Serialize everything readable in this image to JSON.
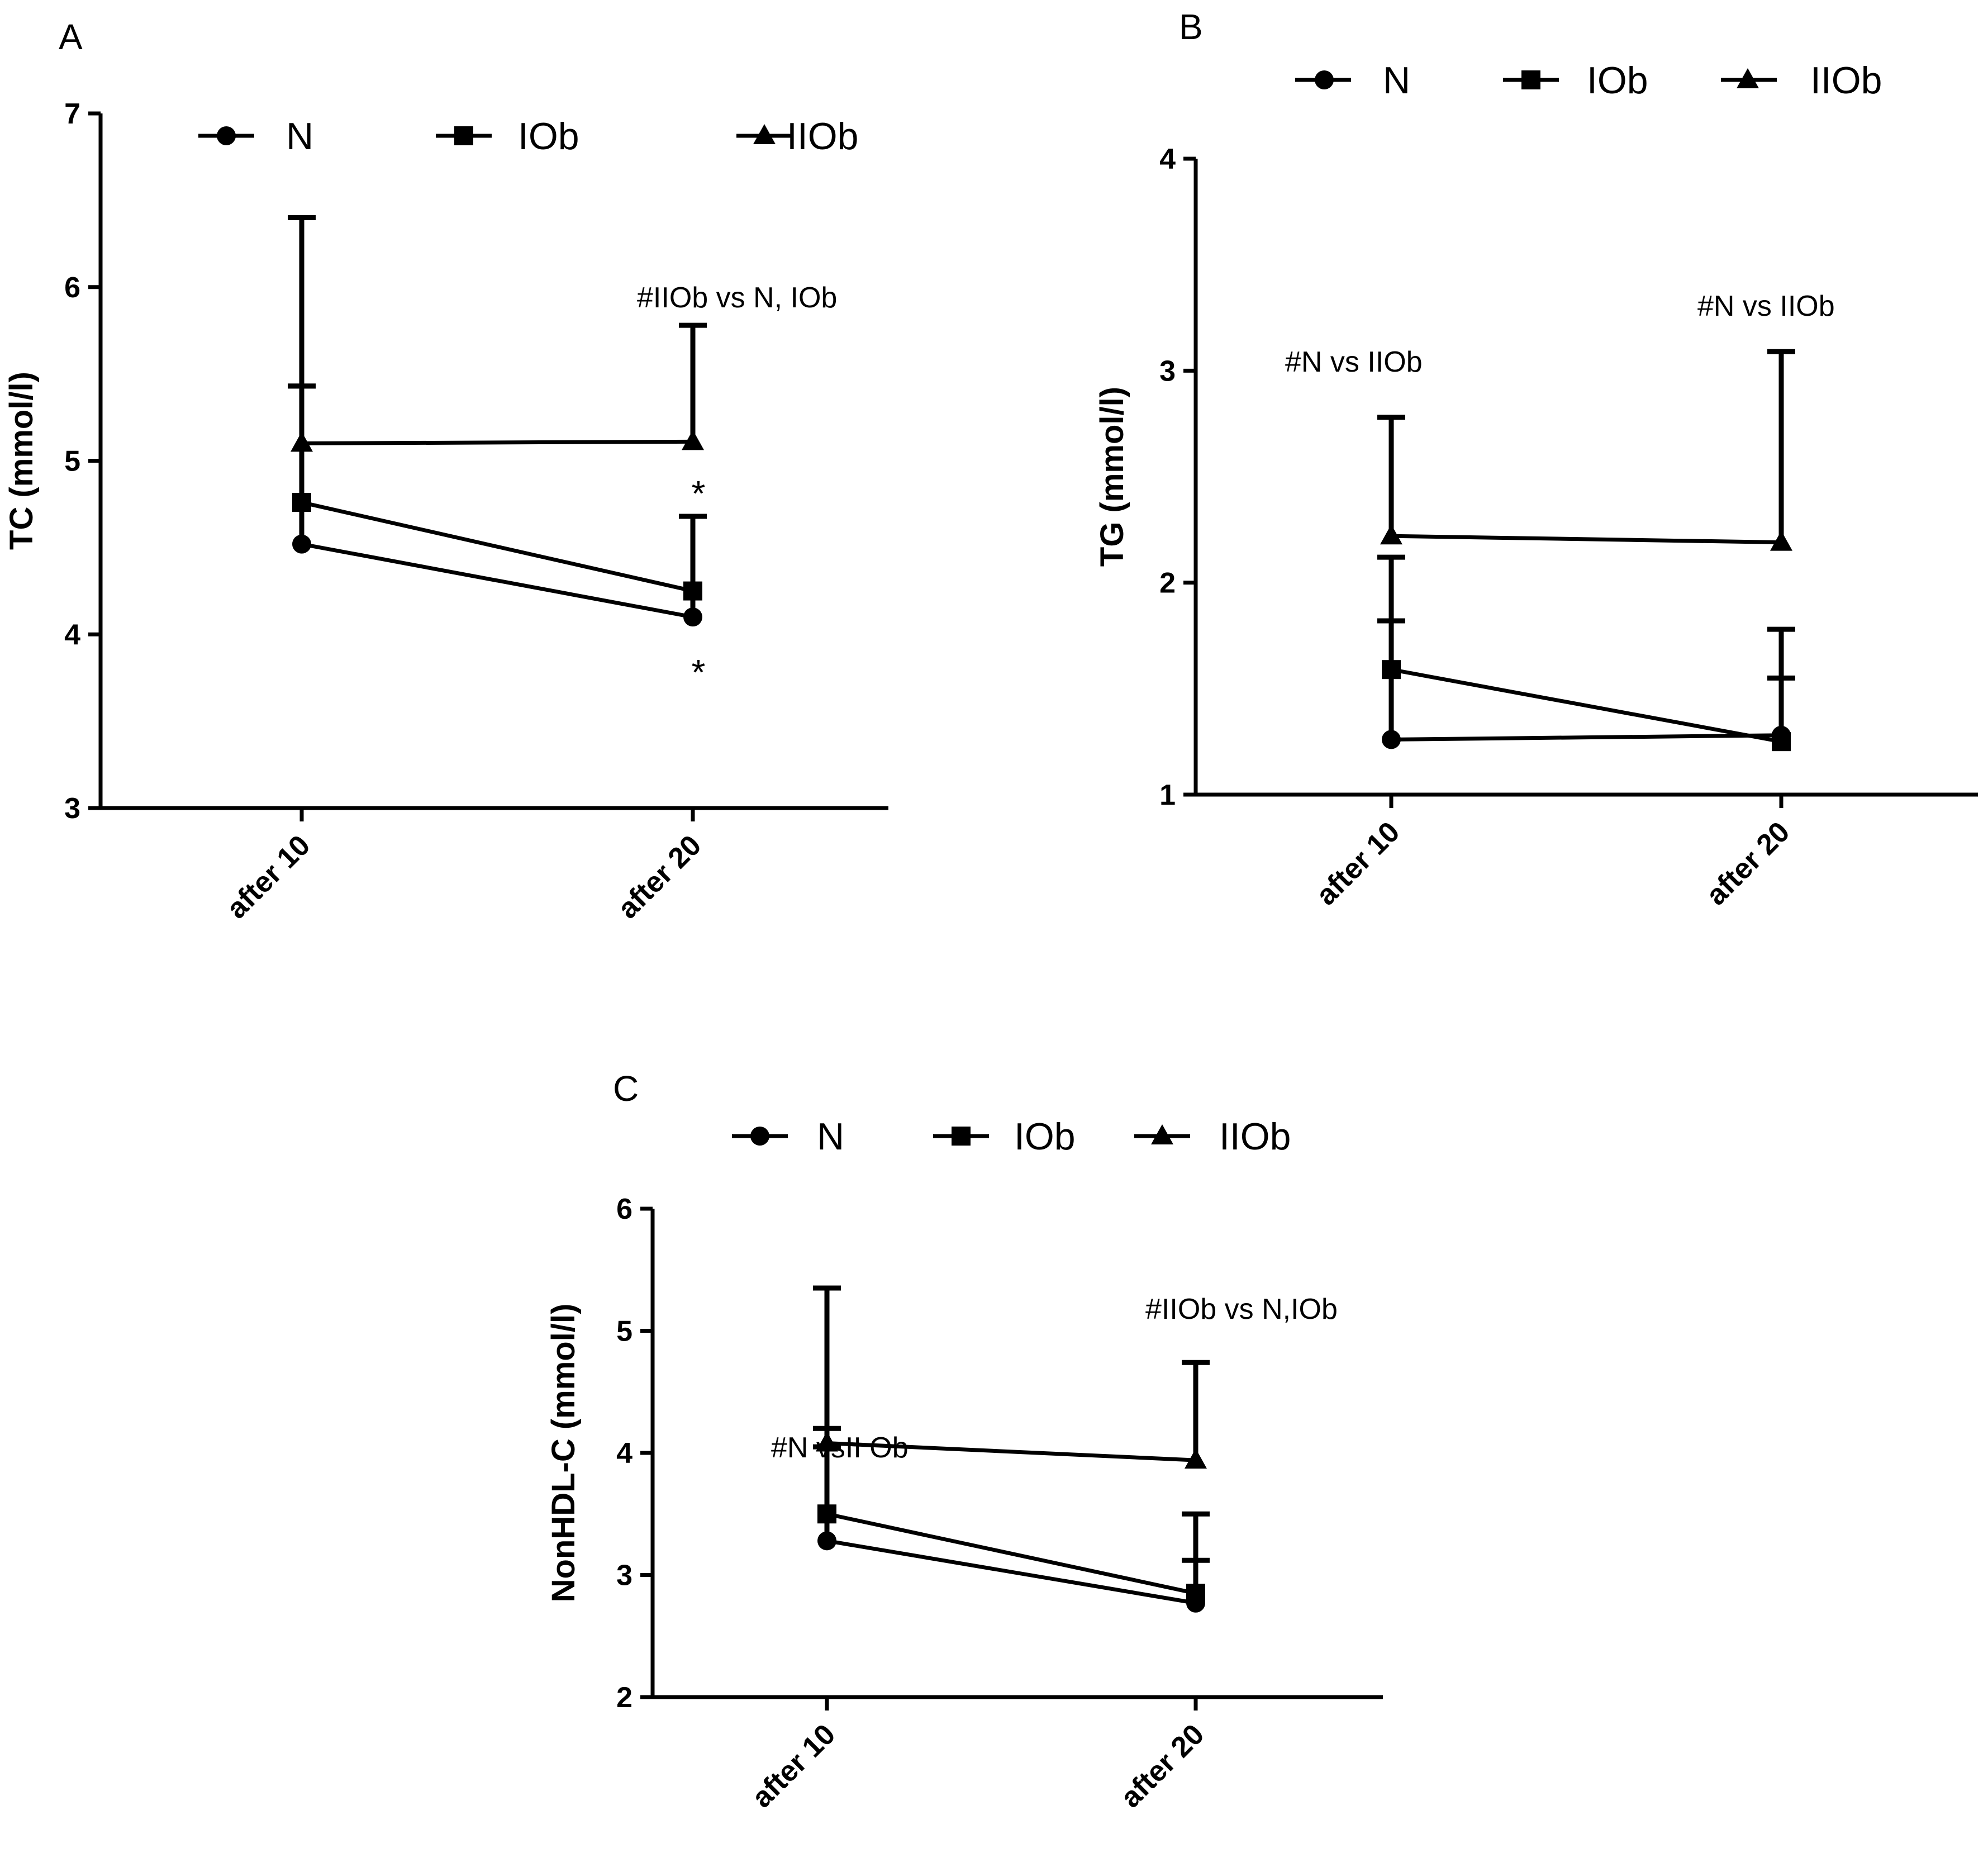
{
  "chart_data": [
    {
      "panel": "A",
      "type": "line",
      "categories": [
        "after 10",
        "after 20"
      ],
      "ylabel": "TC (mmol/l)",
      "ylim": [
        3,
        7
      ],
      "yticks": [
        "3",
        "4",
        "5",
        "6",
        "7"
      ],
      "legend": [
        "N",
        "IOb",
        "IIOb"
      ],
      "legend_position": "top",
      "series": [
        {
          "name": "N",
          "marker": "circle",
          "values": [
            4.52,
            4.1
          ],
          "upper": [
            5.43,
            4.68
          ]
        },
        {
          "name": "IOb",
          "marker": "square",
          "values": [
            4.76,
            4.25
          ],
          "upper": [
            5.43,
            4.68
          ]
        },
        {
          "name": "IIOb",
          "marker": "triangle",
          "values": [
            5.1,
            5.11
          ],
          "upper": [
            6.4,
            5.78
          ]
        }
      ],
      "annotations": [
        {
          "text": "#IIOb vs N, IOb",
          "category": 1
        },
        {
          "text": "*",
          "category": 1,
          "place": "above IOb"
        },
        {
          "text": "*",
          "category": 1,
          "place": "below N"
        }
      ]
    },
    {
      "panel": "B",
      "type": "line",
      "categories": [
        "after 10",
        "after 20"
      ],
      "ylabel": "TG (mmol/l)",
      "ylim": [
        1,
        4
      ],
      "yticks": [
        "1",
        "2",
        "3",
        "4"
      ],
      "legend": [
        "N",
        "IOb",
        "IIOb"
      ],
      "legend_position": "top",
      "series": [
        {
          "name": "N",
          "marker": "circle",
          "values": [
            1.26,
            1.28
          ],
          "upper": [
            1.82,
            1.55
          ]
        },
        {
          "name": "IOb",
          "marker": "square",
          "values": [
            1.59,
            1.25
          ],
          "upper": [
            2.12,
            1.78
          ]
        },
        {
          "name": "IIOb",
          "marker": "triangle",
          "values": [
            2.22,
            2.19
          ],
          "upper": [
            2.78,
            3.09
          ]
        }
      ],
      "annotations": [
        {
          "text": "#N vs IIOb",
          "category": 0
        },
        {
          "text": "#N vs IIOb",
          "category": 1
        }
      ]
    },
    {
      "panel": "C",
      "type": "line",
      "categories": [
        "after 10",
        "after 20"
      ],
      "ylabel": "NonHDL-C (mmol/l)",
      "ylim": [
        2,
        6
      ],
      "yticks": [
        "2",
        "3",
        "4",
        "5",
        "6"
      ],
      "legend": [
        "N",
        "IOb",
        "IIOb"
      ],
      "legend_position": "top",
      "series": [
        {
          "name": "N",
          "marker": "circle",
          "values": [
            3.28,
            2.77
          ],
          "upper": [
            4.05,
            3.12
          ]
        },
        {
          "name": "IOb",
          "marker": "square",
          "values": [
            3.5,
            2.85
          ],
          "upper": [
            4.2,
            3.5
          ]
        },
        {
          "name": "IIOb",
          "marker": "triangle",
          "values": [
            4.08,
            3.94
          ],
          "upper": [
            5.35,
            4.74
          ]
        }
      ],
      "annotations": [
        {
          "text": "#N vsII Ob",
          "category": 0
        },
        {
          "text": "#IIOb vs N,IOb",
          "category": 1
        }
      ]
    }
  ]
}
